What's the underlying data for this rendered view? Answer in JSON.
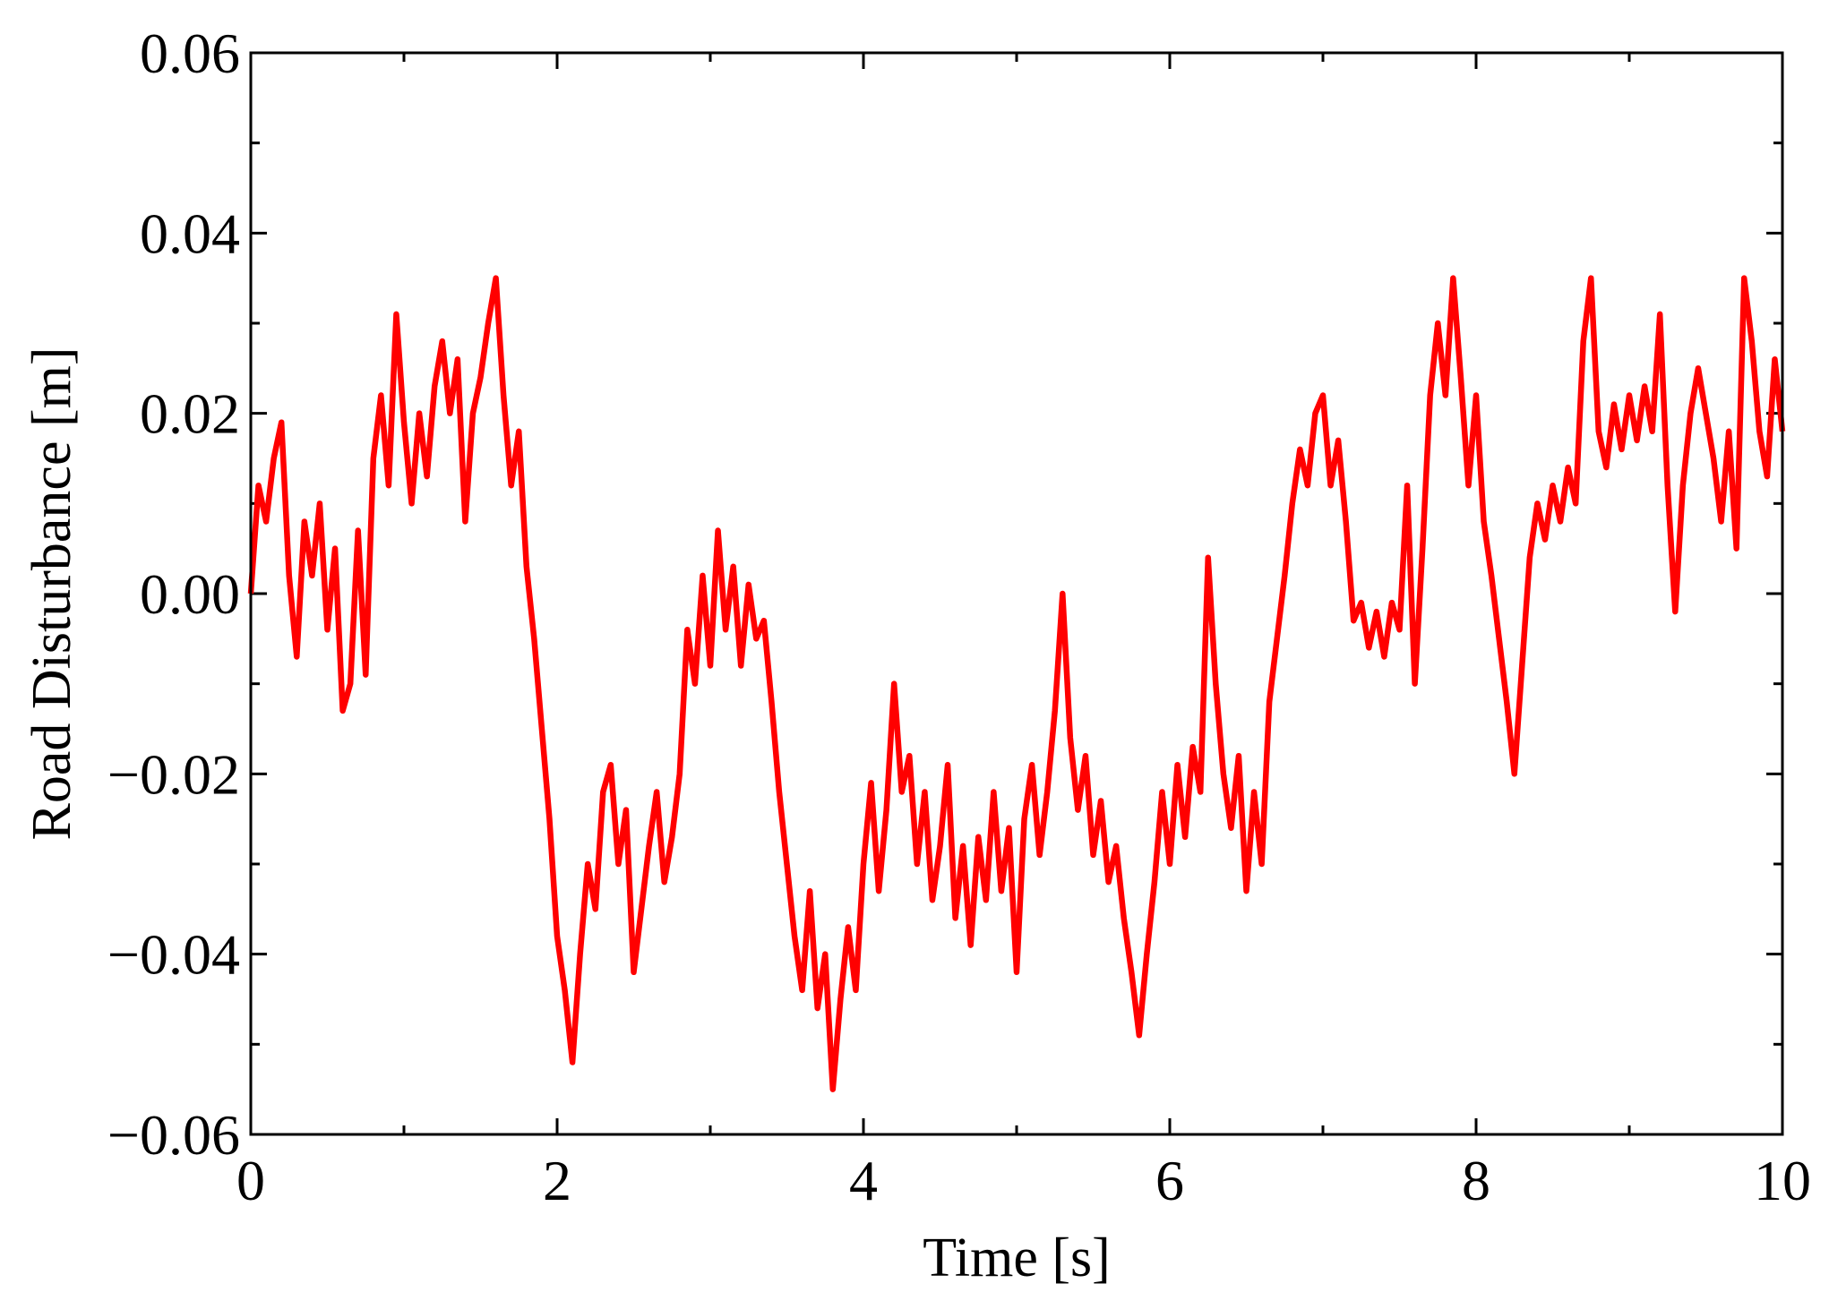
{
  "chart_data": {
    "type": "line",
    "xlabel": "Time [s]",
    "ylabel": "Road Disturbance [m]",
    "color": "#ff0000",
    "xlim": [
      0,
      10
    ],
    "xticks": [
      0,
      2,
      4,
      6,
      8,
      10
    ],
    "xminorticks": [
      1,
      3,
      5,
      7,
      9
    ],
    "ylim": [
      -0.06,
      0.06
    ],
    "yticks": [
      {
        "value": -0.06,
        "label": "−0.06"
      },
      {
        "value": -0.04,
        "label": "−0.04"
      },
      {
        "value": -0.02,
        "label": "−0.02"
      },
      {
        "value": 0,
        "label": "0.00"
      },
      0.02,
      0.04,
      0.06
    ],
    "yminorticks": [
      -0.05,
      -0.03,
      -0.01,
      0.01,
      0.03,
      0.05
    ],
    "x": [
      0,
      0.05,
      0.1,
      0.15,
      0.2,
      0.25,
      0.3,
      0.35,
      0.4,
      0.45,
      0.5,
      0.55,
      0.6,
      0.65,
      0.7,
      0.75,
      0.8,
      0.85,
      0.9,
      0.95,
      1,
      1.05,
      1.1,
      1.15,
      1.2,
      1.25,
      1.3,
      1.35,
      1.4,
      1.45,
      1.5,
      1.55,
      1.6,
      1.65,
      1.7,
      1.75,
      1.8,
      1.85,
      1.9,
      1.95,
      2,
      2.05,
      2.1,
      2.15,
      2.2,
      2.25,
      2.3,
      2.35,
      2.4,
      2.45,
      2.5,
      2.55,
      2.6,
      2.65,
      2.7,
      2.75,
      2.8,
      2.85,
      2.9,
      2.95,
      3,
      3.05,
      3.1,
      3.15,
      3.2,
      3.25,
      3.3,
      3.35,
      3.4,
      3.45,
      3.5,
      3.55,
      3.6,
      3.65,
      3.7,
      3.75,
      3.8,
      3.85,
      3.9,
      3.95,
      4,
      4.05,
      4.1,
      4.15,
      4.2,
      4.25,
      4.3,
      4.35,
      4.4,
      4.45,
      4.5,
      4.55,
      4.6,
      4.65,
      4.7,
      4.75,
      4.8,
      4.85,
      4.9,
      4.95,
      5,
      5.05,
      5.1,
      5.15,
      5.2,
      5.25,
      5.3,
      5.35,
      5.4,
      5.45,
      5.5,
      5.55,
      5.6,
      5.65,
      5.7,
      5.75,
      5.8,
      5.85,
      5.9,
      5.95,
      6,
      6.05,
      6.1,
      6.15,
      6.2,
      6.25,
      6.3,
      6.35,
      6.4,
      6.45,
      6.5,
      6.55,
      6.6,
      6.65,
      6.7,
      6.75,
      6.8,
      6.85,
      6.9,
      6.95,
      7,
      7.05,
      7.1,
      7.15,
      7.2,
      7.25,
      7.3,
      7.35,
      7.4,
      7.45,
      7.5,
      7.55,
      7.6,
      7.65,
      7.7,
      7.75,
      7.8,
      7.85,
      7.9,
      7.95,
      8,
      8.05,
      8.1,
      8.15,
      8.2,
      8.25,
      8.3,
      8.35,
      8.4,
      8.45,
      8.5,
      8.55,
      8.6,
      8.65,
      8.7,
      8.75,
      8.8,
      8.85,
      8.9,
      8.95,
      9,
      9.05,
      9.1,
      9.15,
      9.2,
      9.25,
      9.3,
      9.35,
      9.4,
      9.45,
      9.5,
      9.55,
      9.6,
      9.65,
      9.7,
      9.75,
      9.8,
      9.85,
      9.9,
      9.95,
      10
    ],
    "values": [
      0,
      0.012,
      0.008,
      0.015,
      0.019,
      0.002,
      -0.007,
      0.008,
      0.002,
      0.01,
      -0.004,
      0.005,
      -0.013,
      -0.01,
      0.007,
      -0.009,
      0.015,
      0.022,
      0.012,
      0.031,
      0.019,
      0.01,
      0.02,
      0.013,
      0.023,
      0.028,
      0.02,
      0.026,
      0.008,
      0.02,
      0.024,
      0.03,
      0.035,
      0.022,
      0.012,
      0.018,
      0.003,
      -0.005,
      -0.015,
      -0.025,
      -0.038,
      -0.044,
      -0.052,
      -0.04,
      -0.03,
      -0.035,
      -0.022,
      -0.019,
      -0.03,
      -0.024,
      -0.042,
      -0.035,
      -0.028,
      -0.022,
      -0.032,
      -0.027,
      -0.02,
      -0.004,
      -0.01,
      0.002,
      -0.008,
      0.007,
      -0.004,
      0.003,
      -0.008,
      0.001,
      -0.005,
      -0.003,
      -0.012,
      -0.022,
      -0.03,
      -0.038,
      -0.044,
      -0.033,
      -0.046,
      -0.04,
      -0.055,
      -0.045,
      -0.037,
      -0.044,
      -0.03,
      -0.021,
      -0.033,
      -0.024,
      -0.01,
      -0.022,
      -0.018,
      -0.03,
      -0.022,
      -0.034,
      -0.028,
      -0.019,
      -0.036,
      -0.028,
      -0.039,
      -0.027,
      -0.034,
      -0.022,
      -0.033,
      -0.026,
      -0.042,
      -0.025,
      -0.019,
      -0.029,
      -0.022,
      -0.013,
      0,
      -0.016,
      -0.024,
      -0.018,
      -0.029,
      -0.023,
      -0.032,
      -0.028,
      -0.036,
      -0.042,
      -0.049,
      -0.04,
      -0.032,
      -0.022,
      -0.03,
      -0.019,
      -0.027,
      -0.017,
      -0.022,
      0.004,
      -0.01,
      -0.02,
      -0.026,
      -0.018,
      -0.033,
      -0.022,
      -0.03,
      -0.012,
      -0.005,
      0.002,
      0.01,
      0.016,
      0.012,
      0.02,
      0.022,
      0.012,
      0.017,
      0.008,
      -0.003,
      -0.001,
      -0.006,
      -0.002,
      -0.007,
      -0.001,
      -0.004,
      0.012,
      -0.01,
      0.005,
      0.022,
      0.03,
      0.022,
      0.035,
      0.024,
      0.012,
      0.022,
      0.008,
      0.002,
      -0.005,
      -0.012,
      -0.02,
      -0.008,
      0.004,
      0.01,
      0.006,
      0.012,
      0.008,
      0.014,
      0.01,
      0.028,
      0.035,
      0.018,
      0.014,
      0.021,
      0.016,
      0.022,
      0.017,
      0.023,
      0.018,
      0.031,
      0.012,
      -0.002,
      0.012,
      0.02,
      0.025,
      0.02,
      0.015,
      0.008,
      0.018,
      0.005,
      0.035,
      0.028,
      0.018,
      0.013,
      0.026,
      0.018
    ]
  }
}
